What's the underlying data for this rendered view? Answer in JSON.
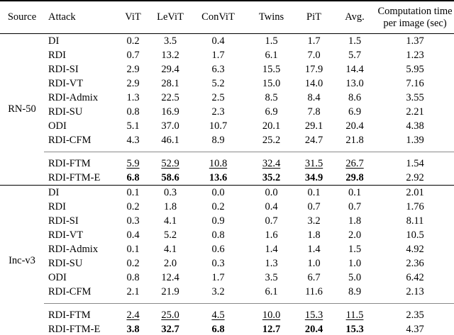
{
  "page": {
    "background_color": "#ffffff",
    "text_color": "#000000",
    "main_rule_color": "#000000",
    "partial_rule_color": "#8a8a8a"
  },
  "table": {
    "columns": [
      "Source",
      "Attack",
      "ViT",
      "LeViT",
      "ConViT",
      "Twins",
      "PiT",
      "Avg."
    ],
    "time_header": [
      "Computation time",
      "per image (sec)"
    ],
    "groups": [
      {
        "source": "RN-50",
        "rows": [
          {
            "attack": "DI",
            "values": [
              "0.2",
              "3.5",
              "0.4",
              "1.5",
              "1.7",
              "1.5"
            ],
            "time": "1.37"
          },
          {
            "attack": "RDI",
            "values": [
              "0.7",
              "13.2",
              "1.7",
              "6.1",
              "7.0",
              "5.7"
            ],
            "time": "1.23"
          },
          {
            "attack": "RDI-SI",
            "values": [
              "2.9",
              "29.4",
              "6.3",
              "15.5",
              "17.9",
              "14.4"
            ],
            "time": "5.95"
          },
          {
            "attack": "RDI-VT",
            "values": [
              "2.9",
              "28.1",
              "5.2",
              "15.0",
              "14.0",
              "13.0"
            ],
            "time": "7.16"
          },
          {
            "attack": "RDI-Admix",
            "values": [
              "1.3",
              "22.5",
              "2.5",
              "8.5",
              "8.4",
              "8.6"
            ],
            "time": "3.55"
          },
          {
            "attack": "RDI-SU",
            "values": [
              "0.8",
              "16.9",
              "2.3",
              "6.9",
              "7.8",
              "6.9"
            ],
            "time": "2.21"
          },
          {
            "attack": "ODI",
            "values": [
              "5.1",
              "37.0",
              "10.7",
              "20.1",
              "29.1",
              "20.4"
            ],
            "time": "4.38"
          },
          {
            "attack": "RDI-CFM",
            "values": [
              "4.3",
              "46.1",
              "8.9",
              "25.2",
              "24.7",
              "21.8"
            ],
            "time": "1.39"
          },
          {
            "attack": "RDI-FTM",
            "values": [
              "5.9",
              "52.9",
              "10.8",
              "32.4",
              "31.5",
              "26.7"
            ],
            "time": "1.54",
            "emphasis": "underline",
            "rule_above": true
          },
          {
            "attack": "RDI-FTM-E",
            "values": [
              "6.8",
              "58.6",
              "13.6",
              "35.2",
              "34.9",
              "29.8"
            ],
            "time": "2.92",
            "emphasis": "bold"
          }
        ]
      },
      {
        "source": "Inc-v3",
        "rows": [
          {
            "attack": "DI",
            "values": [
              "0.1",
              "0.3",
              "0.0",
              "0.0",
              "0.1",
              "0.1"
            ],
            "time": "2.01"
          },
          {
            "attack": "RDI",
            "values": [
              "0.2",
              "1.8",
              "0.2",
              "0.4",
              "0.7",
              "0.7"
            ],
            "time": "1.76"
          },
          {
            "attack": "RDI-SI",
            "values": [
              "0.3",
              "4.1",
              "0.9",
              "0.7",
              "3.2",
              "1.8"
            ],
            "time": "8.11"
          },
          {
            "attack": "RDI-VT",
            "values": [
              "0.4",
              "5.2",
              "0.8",
              "1.6",
              "1.8",
              "2.0"
            ],
            "time": "10.5"
          },
          {
            "attack": "RDI-Admix",
            "values": [
              "0.1",
              "4.1",
              "0.6",
              "1.4",
              "1.4",
              "1.5"
            ],
            "time": "4.92"
          },
          {
            "attack": "RDI-SU",
            "values": [
              "0.2",
              "2.0",
              "0.3",
              "1.3",
              "1.0",
              "1.0"
            ],
            "time": "2.36"
          },
          {
            "attack": "ODI",
            "values": [
              "0.8",
              "12.4",
              "1.7",
              "3.5",
              "6.7",
              "5.0"
            ],
            "time": "6.42"
          },
          {
            "attack": "RDI-CFM",
            "values": [
              "2.1",
              "21.9",
              "3.2",
              "6.1",
              "11.6",
              "8.9"
            ],
            "time": "2.13"
          },
          {
            "attack": "RDI-FTM",
            "values": [
              "2.4",
              "25.0",
              "4.5",
              "10.0",
              "15.3",
              "11.5"
            ],
            "time": "2.35",
            "emphasis": "underline",
            "rule_above": true
          },
          {
            "attack": "RDI-FTM-E",
            "values": [
              "3.8",
              "32.7",
              "6.8",
              "12.7",
              "20.4",
              "15.3"
            ],
            "time": "4.37",
            "emphasis": "bold"
          }
        ]
      }
    ]
  }
}
